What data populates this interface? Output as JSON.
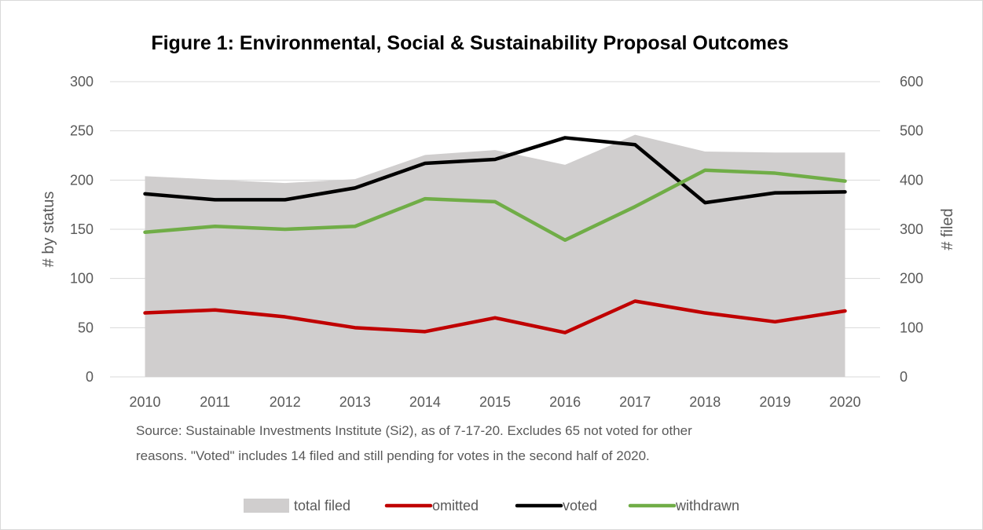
{
  "chart_data": {
    "type": "area+line",
    "title": "Figure 1: Environmental, Social & Sustainability Proposal Outcomes",
    "categories": [
      "2010",
      "2011",
      "2012",
      "2013",
      "2014",
      "2015",
      "2016",
      "2017",
      "2018",
      "2019",
      "2020"
    ],
    "ylabel_left": "# by status",
    "ylabel_right": "# filed",
    "ylim_left": [
      0,
      300
    ],
    "ylim_right": [
      0,
      600
    ],
    "yticks_left": [
      "0",
      "50",
      "100",
      "150",
      "200",
      "250",
      "300"
    ],
    "yticks_right": [
      "0",
      "100",
      "200",
      "300",
      "400",
      "500",
      "600"
    ],
    "grid": true,
    "legend_position": "bottom",
    "series": [
      {
        "name": "total filed",
        "type": "area",
        "axis": "right",
        "color": "#d0cece",
        "values": [
          408,
          401,
          394,
          402,
          451,
          461,
          431,
          492,
          458,
          456,
          456
        ]
      },
      {
        "name": "omitted",
        "type": "line",
        "axis": "left",
        "color": "#c00000",
        "values": [
          65,
          68,
          61,
          50,
          46,
          60,
          45,
          77,
          65,
          56,
          67
        ]
      },
      {
        "name": "voted",
        "type": "line",
        "axis": "left",
        "color": "#000000",
        "values": [
          186,
          180,
          180,
          192,
          217,
          221,
          243,
          236,
          177,
          187,
          188
        ]
      },
      {
        "name": "withdrawn",
        "type": "line",
        "axis": "left",
        "color": "#70ad47",
        "values": [
          147,
          153,
          150,
          153,
          181,
          178,
          139,
          173,
          210,
          207,
          199
        ]
      }
    ],
    "source_lines": [
      "Source:  Sustainable Investments Institute (Si2), as of 7-17-20.  Excludes 65 not voted for other",
      "reasons.  \"Voted\" includes 14 filed and still pending for votes in the second half of 2020."
    ]
  }
}
